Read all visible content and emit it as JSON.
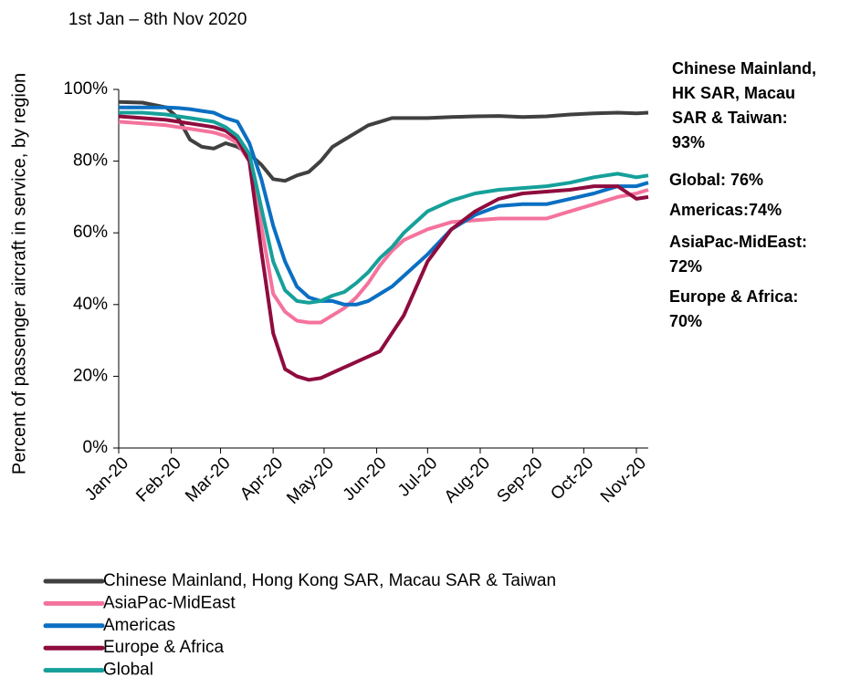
{
  "chart_data": {
    "type": "line",
    "subtitle": "1st Jan – 8th Nov 2020",
    "y_label": "Percent of passenger aircraft in service, by region",
    "x": [
      0,
      14,
      28,
      35,
      42,
      49,
      56,
      63,
      70,
      77,
      84,
      91,
      98,
      105,
      112,
      119,
      126,
      133,
      140,
      147,
      154,
      161,
      168,
      182,
      196,
      210,
      224,
      238,
      252,
      266,
      280,
      294,
      305,
      312
    ],
    "xlim": [
      0,
      312
    ],
    "xticks": [
      {
        "value": 0,
        "label": "Jan-20"
      },
      {
        "value": 31,
        "label": "Feb-20"
      },
      {
        "value": 60,
        "label": "Mar-20"
      },
      {
        "value": 91,
        "label": "Apr-20"
      },
      {
        "value": 121,
        "label": "May-20"
      },
      {
        "value": 152,
        "label": "Jun-20"
      },
      {
        "value": 182,
        "label": "Jul-20"
      },
      {
        "value": 213,
        "label": "Aug-20"
      },
      {
        "value": 244,
        "label": "Sep-20"
      },
      {
        "value": 274,
        "label": "Oct-20"
      },
      {
        "value": 305,
        "label": "Nov-20"
      }
    ],
    "ylim": [
      0,
      100
    ],
    "yticks": [
      {
        "value": 0,
        "label": "0%"
      },
      {
        "value": 20,
        "label": "20%"
      },
      {
        "value": 40,
        "label": "40%"
      },
      {
        "value": 60,
        "label": "60%"
      },
      {
        "value": 80,
        "label": "80%"
      },
      {
        "value": 100,
        "label": "100%"
      }
    ],
    "series": [
      {
        "name": "Chinese Mainland, Hong Kong SAR, Macau SAR & Taiwan",
        "color": "#404040",
        "values": [
          96.5,
          96.3,
          95,
          92,
          86,
          84,
          83.5,
          85,
          84,
          82,
          79,
          75,
          74.5,
          76,
          77,
          80,
          84,
          86,
          88,
          90,
          91,
          92,
          92,
          92,
          92.3,
          92.5,
          92.6,
          92.3,
          92.5,
          93,
          93.3,
          93.5,
          93.3,
          93.5
        ]
      },
      {
        "name": "AsiaPac-MidEast",
        "color": "#f4739c",
        "values": [
          91,
          90.5,
          90,
          89.5,
          89,
          88.5,
          88,
          87,
          85,
          80,
          62,
          43,
          38,
          35.5,
          35,
          35,
          37,
          39,
          42,
          46,
          51,
          55,
          58,
          61,
          63,
          63.5,
          64,
          64,
          64,
          66,
          68,
          70,
          71,
          72
        ]
      },
      {
        "name": "Americas",
        "color": "#0a6fc2",
        "values": [
          95,
          95,
          95,
          94.8,
          94.5,
          94,
          93.5,
          92,
          91,
          85,
          75,
          62,
          52,
          45,
          42,
          41,
          41,
          40,
          40,
          41,
          43,
          45,
          48,
          54,
          61,
          65,
          67.5,
          68,
          68,
          69.5,
          71,
          73,
          73,
          74
        ]
      },
      {
        "name": "Europe & Africa",
        "color": "#8f0c3e",
        "values": [
          92.5,
          92,
          91.5,
          91,
          90.5,
          90,
          89.5,
          88.5,
          86,
          80,
          55,
          32,
          22,
          20,
          19,
          19.5,
          21,
          22.5,
          24,
          25.5,
          27,
          32,
          37,
          52,
          61,
          66,
          69.5,
          71,
          71.5,
          72,
          73,
          73,
          69.5,
          70
        ]
      },
      {
        "name": "Global",
        "color": "#16a09a",
        "values": [
          93.5,
          93.5,
          93,
          92.5,
          92,
          91.5,
          91,
          89.5,
          87,
          82,
          67,
          52,
          44,
          41,
          40.5,
          41,
          42.5,
          43.5,
          46,
          49,
          53,
          56,
          60,
          66,
          69,
          71,
          72,
          72.5,
          73,
          74,
          75.5,
          76.5,
          75.5,
          76
        ]
      }
    ],
    "annotations": [
      {
        "lines": [
          "Chinese Mainland,",
          "HK SAR, Macau",
          "SAR & Taiwan:",
          "93%"
        ],
        "color": "#000000"
      },
      {
        "lines": [
          "Global: 76%"
        ],
        "color": "#16a09a"
      },
      {
        "lines": [
          "Americas:74%"
        ],
        "color": "#0a6fc2"
      },
      {
        "lines": [
          "AsiaPac-MidEast:",
          "72%"
        ],
        "color": "#f4739c"
      },
      {
        "lines": [
          "Europe & Africa:",
          "70%"
        ],
        "color": "#b0102f"
      }
    ]
  }
}
